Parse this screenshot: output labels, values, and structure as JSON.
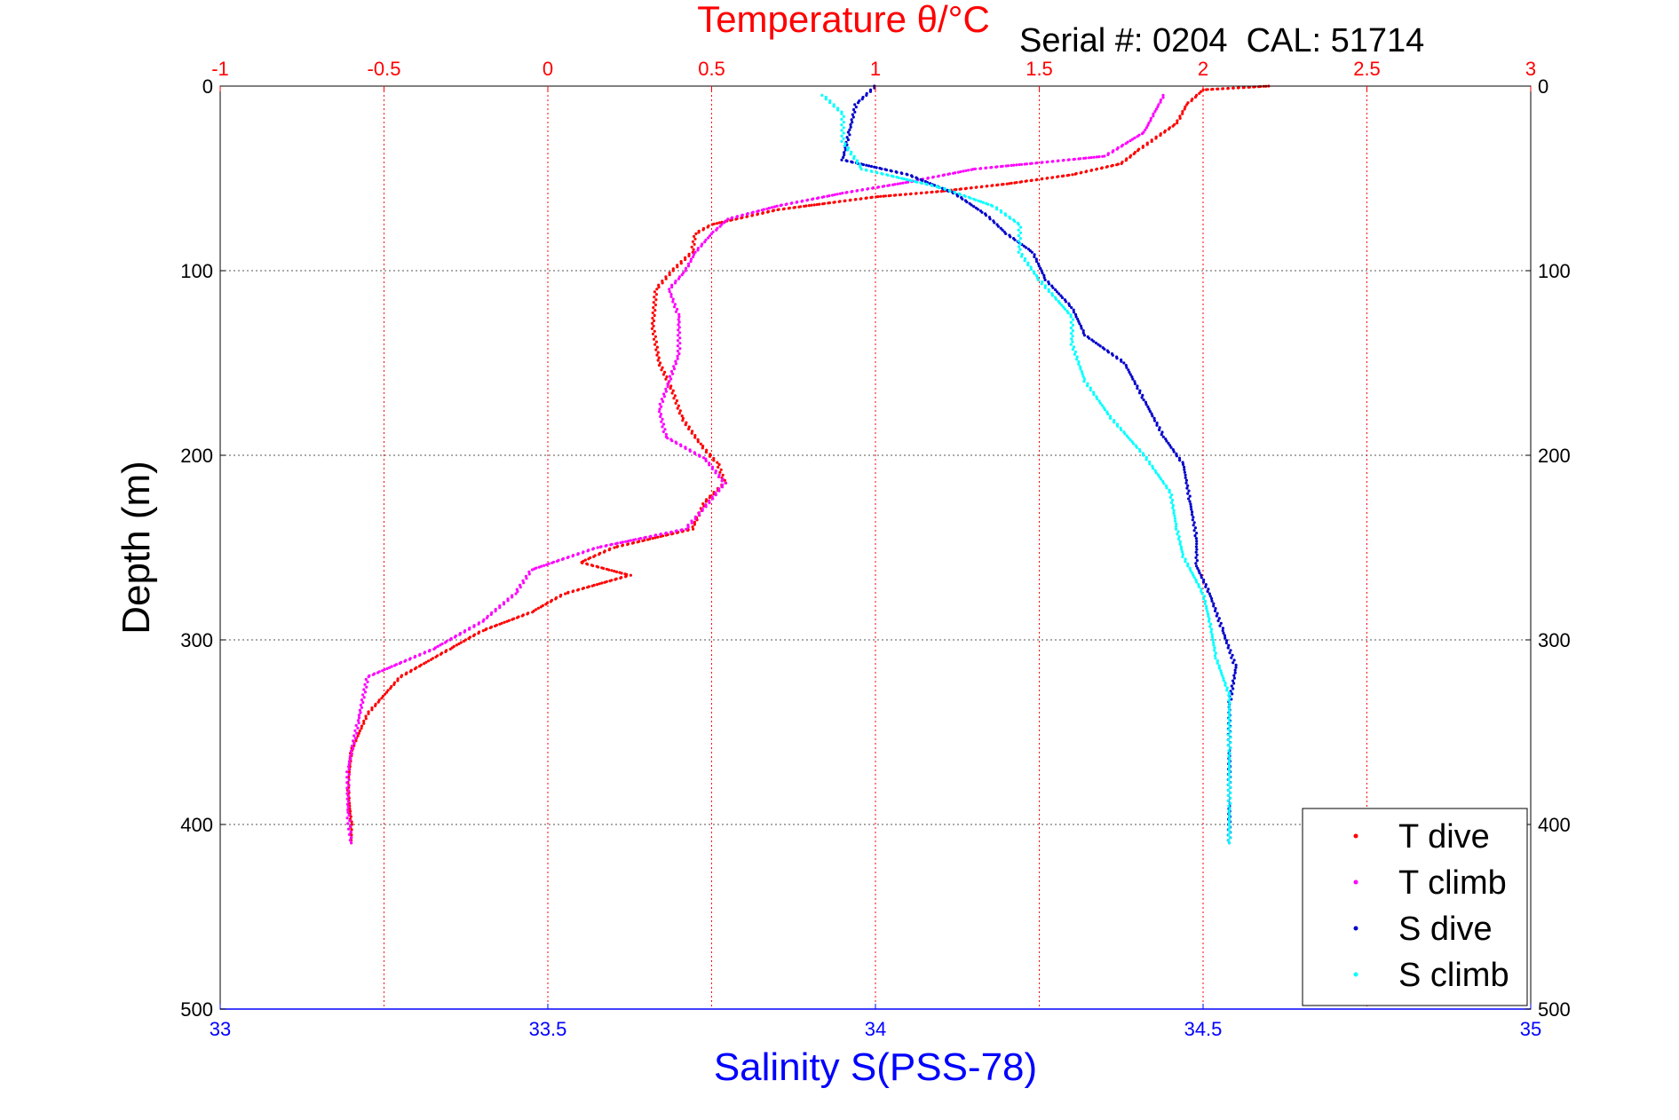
{
  "chart_data": {
    "type": "scatter",
    "title": "Temperature θ/°C",
    "annotation": "Serial #: 0204  CAL: 51714",
    "ylabel": "Depth (m)",
    "xlabel_bottom": "Salinity S(PSS-78)",
    "xlabel_top": "Temperature θ/°C",
    "ylim": [
      0,
      500
    ],
    "y_reversed": true,
    "y_ticks": [
      0,
      100,
      200,
      300,
      400,
      500
    ],
    "x_bottom_lim": [
      33,
      35
    ],
    "x_bottom_ticks": [
      "33",
      "33.5",
      "34",
      "34.5",
      "35"
    ],
    "x_top_lim": [
      -1,
      3
    ],
    "x_top_ticks": [
      "-1",
      "-0.5",
      "0",
      "0.5",
      "1",
      "1.5",
      "2",
      "2.5",
      "3"
    ],
    "grid": true,
    "legend_position": "bottom-right",
    "colors": {
      "temperature_axis": "#ff0000",
      "salinity_axis": "#0000ff",
      "grid": "#555555"
    },
    "series": [
      {
        "name": "T dive",
        "axis": "top",
        "color": "#ff0000",
        "points": [
          [
            2.2,
            0
          ],
          [
            2.0,
            2
          ],
          [
            1.95,
            10
          ],
          [
            1.92,
            20
          ],
          [
            1.8,
            35
          ],
          [
            1.75,
            42
          ],
          [
            1.6,
            48
          ],
          [
            1.4,
            53
          ],
          [
            1.2,
            57
          ],
          [
            1.0,
            60
          ],
          [
            0.7,
            67
          ],
          [
            0.5,
            75
          ],
          [
            0.45,
            80
          ],
          [
            0.44,
            90
          ],
          [
            0.38,
            100
          ],
          [
            0.33,
            110
          ],
          [
            0.32,
            130
          ],
          [
            0.34,
            150
          ],
          [
            0.38,
            165
          ],
          [
            0.41,
            180
          ],
          [
            0.47,
            195
          ],
          [
            0.52,
            205
          ],
          [
            0.54,
            215
          ],
          [
            0.48,
            225
          ],
          [
            0.44,
            240
          ],
          [
            0.2,
            250
          ],
          [
            0.1,
            258
          ],
          [
            0.25,
            265
          ],
          [
            0.05,
            275
          ],
          [
            -0.05,
            285
          ],
          [
            -0.2,
            295
          ],
          [
            -0.3,
            305
          ],
          [
            -0.45,
            320
          ],
          [
            -0.55,
            340
          ],
          [
            -0.6,
            360
          ],
          [
            -0.61,
            380
          ],
          [
            -0.6,
            400
          ],
          [
            -0.6,
            410
          ]
        ]
      },
      {
        "name": "T climb",
        "axis": "top",
        "color": "#ff00ff",
        "points": [
          [
            1.88,
            5
          ],
          [
            1.85,
            15
          ],
          [
            1.82,
            25
          ],
          [
            1.7,
            38
          ],
          [
            1.3,
            45
          ],
          [
            1.1,
            52
          ],
          [
            0.9,
            58
          ],
          [
            0.7,
            65
          ],
          [
            0.55,
            72
          ],
          [
            0.5,
            80
          ],
          [
            0.45,
            90
          ],
          [
            0.42,
            100
          ],
          [
            0.37,
            110
          ],
          [
            0.4,
            125
          ],
          [
            0.4,
            145
          ],
          [
            0.37,
            160
          ],
          [
            0.34,
            175
          ],
          [
            0.36,
            190
          ],
          [
            0.48,
            202
          ],
          [
            0.54,
            215
          ],
          [
            0.47,
            230
          ],
          [
            0.42,
            240
          ],
          [
            0.15,
            250
          ],
          [
            -0.05,
            262
          ],
          [
            -0.1,
            275
          ],
          [
            -0.2,
            290
          ],
          [
            -0.35,
            305
          ],
          [
            -0.55,
            320
          ],
          [
            -0.58,
            345
          ],
          [
            -0.61,
            370
          ],
          [
            -0.61,
            395
          ],
          [
            -0.6,
            410
          ]
        ]
      },
      {
        "name": "S dive",
        "axis": "bottom",
        "color": "#0000cc",
        "points": [
          [
            34.0,
            0
          ],
          [
            33.97,
            10
          ],
          [
            33.96,
            25
          ],
          [
            33.95,
            40
          ],
          [
            34.05,
            48
          ],
          [
            34.12,
            58
          ],
          [
            34.17,
            70
          ],
          [
            34.2,
            80
          ],
          [
            34.24,
            90
          ],
          [
            34.26,
            105
          ],
          [
            34.3,
            120
          ],
          [
            34.32,
            135
          ],
          [
            34.38,
            150
          ],
          [
            34.41,
            170
          ],
          [
            34.44,
            190
          ],
          [
            34.47,
            205
          ],
          [
            34.48,
            225
          ],
          [
            34.49,
            245
          ],
          [
            34.49,
            260
          ],
          [
            34.51,
            275
          ],
          [
            34.53,
            295
          ],
          [
            34.55,
            315
          ],
          [
            34.54,
            335
          ],
          [
            34.54,
            360
          ],
          [
            34.54,
            390
          ],
          [
            34.54,
            410
          ]
        ]
      },
      {
        "name": "S climb",
        "axis": "bottom",
        "color": "#00ffff",
        "points": [
          [
            33.92,
            5
          ],
          [
            33.95,
            15
          ],
          [
            33.95,
            30
          ],
          [
            33.98,
            45
          ],
          [
            34.1,
            55
          ],
          [
            34.18,
            65
          ],
          [
            34.22,
            75
          ],
          [
            34.22,
            90
          ],
          [
            34.25,
            105
          ],
          [
            34.3,
            125
          ],
          [
            34.3,
            140
          ],
          [
            34.32,
            160
          ],
          [
            34.36,
            180
          ],
          [
            34.41,
            200
          ],
          [
            34.45,
            220
          ],
          [
            34.46,
            240
          ],
          [
            34.47,
            255
          ],
          [
            34.5,
            275
          ],
          [
            34.51,
            290
          ],
          [
            34.52,
            310
          ],
          [
            34.54,
            330
          ],
          [
            34.54,
            360
          ],
          [
            34.54,
            390
          ],
          [
            34.54,
            410
          ]
        ]
      }
    ]
  }
}
